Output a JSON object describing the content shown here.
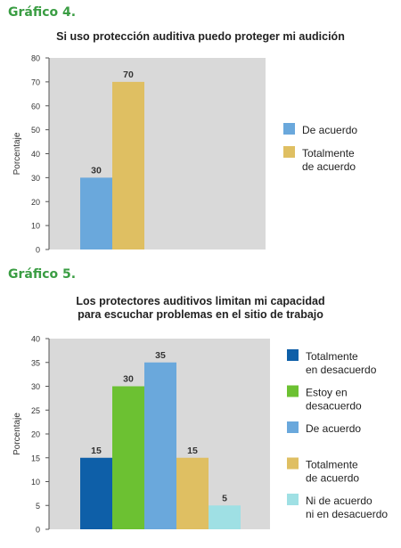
{
  "chart_data": [
    {
      "type": "bar",
      "heading": "Gráfico 4.",
      "title": "Si uso protección auditiva puedo proteger mi audición",
      "ylabel": "Porcentaje",
      "ylim": [
        0,
        80
      ],
      "yticks": [
        0,
        10,
        20,
        30,
        40,
        50,
        60,
        70,
        80
      ],
      "grid": false,
      "legend_position": "right",
      "categories": [
        "De acuerdo",
        "Totalmente de acuerdo"
      ],
      "values": [
        30,
        70
      ],
      "colors": [
        "#6aa8dc",
        "#dfbf62"
      ],
      "legend": [
        {
          "lines": [
            "De acuerdo"
          ],
          "color": "#6aa8dc"
        },
        {
          "lines": [
            "Totalmente",
            "de acuerdo"
          ],
          "color": "#dfbf62"
        }
      ]
    },
    {
      "type": "bar",
      "heading": "Gráfico 5.",
      "title_lines": [
        "Los protectores auditivos limitan mi capacidad",
        "para escuchar problemas en el sitio de trabajo"
      ],
      "ylabel": "Porcentaje",
      "ylim": [
        0,
        40
      ],
      "yticks": [
        0,
        5,
        10,
        15,
        20,
        25,
        30,
        35,
        40
      ],
      "grid": false,
      "legend_position": "right",
      "categories": [
        "Totalmente en desacuerdo",
        "Estoy en desacuerdo",
        "De acuerdo",
        "Totalmente de acuerdo",
        "Ni de acuerdo ni en desacuerdo"
      ],
      "values": [
        15,
        30,
        35,
        15,
        5
      ],
      "colors": [
        "#0e5fa8",
        "#6cc132",
        "#6aa8dc",
        "#dfbf62",
        "#9fe0e4"
      ],
      "legend": [
        {
          "lines": [
            "Totalmente",
            "en desacuerdo"
          ],
          "color": "#0e5fa8"
        },
        {
          "lines": [
            "Estoy en",
            "desacuerdo"
          ],
          "color": "#6cc132"
        },
        {
          "lines": [
            "De acuerdo"
          ],
          "color": "#6aa8dc"
        },
        {
          "lines": [
            "Totalmente",
            "de acuerdo"
          ],
          "color": "#dfbf62"
        },
        {
          "lines": [
            "Ni de acuerdo",
            "ni en desacuerdo"
          ],
          "color": "#9fe0e4"
        }
      ]
    }
  ],
  "style": {
    "heading_color": "#3a9d43",
    "plot_bg": "#d9d9d9",
    "axis_color": "#555555"
  }
}
